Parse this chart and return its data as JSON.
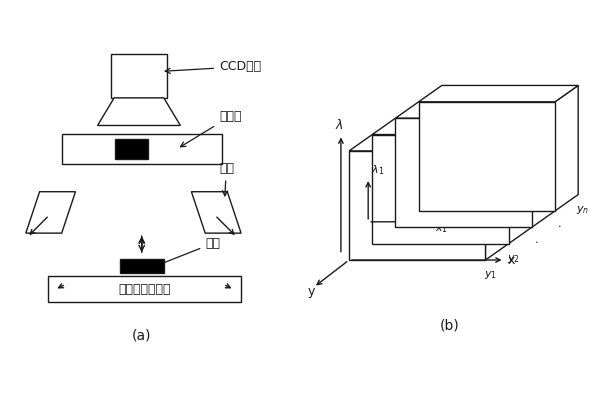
{
  "bg_color": "#ffffff",
  "line_color": "#1a1a1a",
  "title_a": "(a)",
  "title_b": "(b)",
  "labels": {
    "ccd": "CCD相机",
    "spectrometer": "光谱仪",
    "light_source": "光源",
    "sample": "样品",
    "stage": "电控移动载物台"
  },
  "font_size": 9,
  "font_size_small": 8
}
